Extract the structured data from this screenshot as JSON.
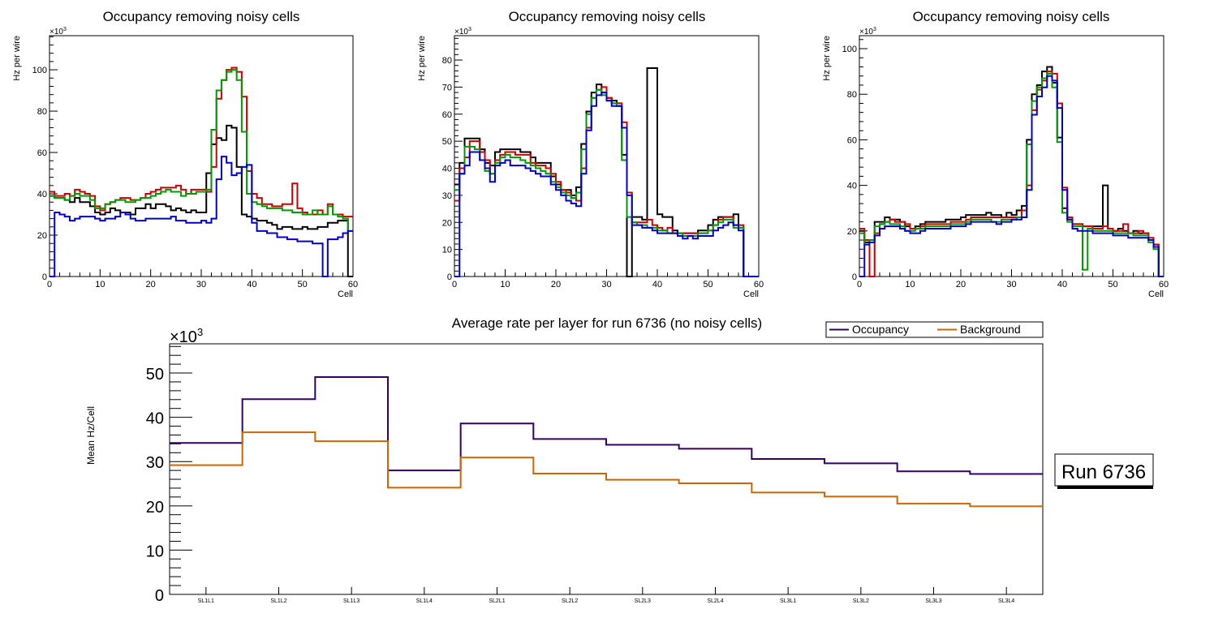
{
  "chart_data": [
    {
      "type": "line",
      "title": "Occupancy removing noisy cells",
      "xlabel": "Cell",
      "ylabel": "Hz per wire",
      "y_multiplier": "×10^3",
      "xlim": [
        0,
        60
      ],
      "ylim": [
        0,
        116.5
      ],
      "xticks": [
        0,
        10,
        20,
        30,
        40,
        50,
        60
      ],
      "yticks": [
        0,
        20,
        40,
        60,
        80,
        100
      ],
      "series": [
        {
          "name": "black",
          "color": "#000000",
          "values": [
            39,
            38,
            38,
            37,
            36,
            38,
            36,
            36,
            34,
            31,
            30,
            31,
            33,
            32,
            31,
            31,
            30,
            33,
            33,
            35,
            33,
            35,
            35,
            34,
            32,
            33,
            32,
            31,
            32,
            31,
            31,
            50,
            64,
            67,
            66,
            73,
            72,
            53,
            30,
            29,
            28,
            27,
            27,
            26,
            25,
            23,
            24,
            24,
            23,
            23,
            24,
            23,
            23,
            24,
            24,
            26,
            26,
            27,
            27,
            0
          ]
        },
        {
          "name": "red",
          "color": "#cc0000",
          "values": [
            41,
            39,
            39,
            40,
            39,
            42,
            41,
            40,
            39,
            34,
            32,
            35,
            36,
            37,
            38,
            38,
            37,
            37,
            38,
            40,
            41,
            42,
            43,
            43,
            43,
            44,
            42,
            40,
            42,
            42,
            42,
            41,
            53,
            86,
            95,
            100,
            101,
            99,
            87,
            51,
            40,
            38,
            35,
            35,
            34,
            34,
            35,
            35,
            45,
            33,
            31,
            30,
            30,
            32,
            30,
            35,
            30,
            30,
            29,
            29
          ]
        },
        {
          "name": "green",
          "color": "#009900",
          "values": [
            39,
            38,
            38,
            37,
            39,
            40,
            39,
            39,
            37,
            33,
            33,
            35,
            36,
            37,
            37,
            36,
            36,
            37,
            38,
            38,
            39,
            40,
            41,
            42,
            41,
            41,
            39,
            40,
            40,
            41,
            41,
            42,
            71,
            90,
            95,
            99,
            100,
            95,
            70,
            40,
            36,
            35,
            34,
            33,
            33,
            33,
            32,
            32,
            31,
            31,
            30,
            30,
            32,
            30,
            30,
            34,
            30,
            29,
            28,
            22
          ]
        },
        {
          "name": "blue",
          "color": "#0000cc",
          "values": [
            0,
            31,
            30,
            29,
            27,
            28,
            29,
            29,
            29,
            28,
            27,
            28,
            28,
            29,
            31,
            30,
            28,
            27,
            27,
            28,
            28,
            28,
            28,
            28,
            29,
            27,
            27,
            26,
            26,
            26,
            27,
            26,
            28,
            47,
            58,
            55,
            49,
            50,
            53,
            54,
            26,
            22,
            22,
            21,
            21,
            19,
            19,
            18,
            18,
            17,
            17,
            17,
            16,
            16,
            0,
            18,
            18,
            19,
            21,
            22
          ]
        }
      ]
    },
    {
      "type": "line",
      "title": "Occupancy removing noisy cells",
      "xlabel": "Cell",
      "ylabel": "Hz per wire",
      "y_multiplier": "×10^3",
      "xlim": [
        0,
        60
      ],
      "ylim": [
        0,
        89
      ],
      "xticks": [
        0,
        10,
        20,
        30,
        40,
        50,
        60
      ],
      "yticks": [
        0,
        10,
        20,
        30,
        40,
        50,
        60,
        70,
        80
      ],
      "series": [
        {
          "name": "black",
          "color": "#000000",
          "values": [
            34,
            42,
            51,
            51,
            51,
            47,
            42,
            41,
            46,
            47,
            47,
            47,
            47,
            46,
            46,
            44,
            42,
            42,
            42,
            37,
            34,
            32,
            32,
            30,
            33,
            49,
            61,
            68,
            71,
            68,
            66,
            65,
            63,
            45,
            0,
            22,
            22,
            21,
            77,
            77,
            23,
            22,
            22,
            17,
            16,
            16,
            16,
            16,
            17,
            17,
            19,
            21,
            22,
            22,
            22,
            23,
            18,
            0,
            0,
            0
          ]
        },
        {
          "name": "red",
          "color": "#cc0000",
          "values": [
            28,
            40,
            44,
            50,
            50,
            46,
            43,
            38,
            43,
            45,
            46,
            46,
            45,
            45,
            45,
            42,
            41,
            41,
            40,
            38,
            35,
            32,
            31,
            29,
            28,
            40,
            55,
            66,
            69,
            70,
            66,
            64,
            64,
            57,
            31,
            20,
            20,
            20,
            21,
            19,
            18,
            17,
            18,
            16,
            16,
            16,
            16,
            16,
            16,
            16,
            17,
            19,
            21,
            22,
            22,
            19,
            19,
            0,
            0,
            0
          ]
        },
        {
          "name": "green",
          "color": "#009900",
          "values": [
            32,
            38,
            48,
            48,
            47,
            43,
            39,
            38,
            42,
            44,
            45,
            44,
            44,
            43,
            42,
            41,
            40,
            39,
            38,
            35,
            33,
            31,
            30,
            29,
            31,
            47,
            60,
            66,
            69,
            67,
            65,
            64,
            63,
            43,
            22,
            20,
            19,
            19,
            18,
            18,
            17,
            17,
            16,
            16,
            16,
            15,
            15,
            15,
            16,
            16,
            17,
            19,
            20,
            21,
            21,
            18,
            18,
            0,
            0,
            0
          ]
        },
        {
          "name": "blue",
          "color": "#0000cc",
          "values": [
            0,
            38,
            41,
            46,
            46,
            43,
            40,
            35,
            41,
            42,
            43,
            41,
            41,
            41,
            40,
            39,
            38,
            37,
            37,
            34,
            32,
            30,
            28,
            27,
            26,
            38,
            54,
            63,
            67,
            68,
            65,
            63,
            63,
            55,
            30,
            19,
            19,
            18,
            18,
            17,
            16,
            16,
            16,
            16,
            15,
            14,
            15,
            14,
            15,
            15,
            15,
            17,
            18,
            19,
            20,
            19,
            17,
            0,
            0,
            0
          ]
        }
      ]
    },
    {
      "type": "line",
      "title": "Occupancy removing noisy cells",
      "xlabel": "Cell",
      "ylabel": "Hz per wire",
      "y_multiplier": "×10^3",
      "xlim": [
        0,
        60
      ],
      "ylim": [
        0,
        105.7
      ],
      "xticks": [
        0,
        10,
        20,
        30,
        40,
        50,
        60
      ],
      "yticks": [
        0,
        20,
        40,
        60,
        80,
        100
      ],
      "series": [
        {
          "name": "black",
          "color": "#000000",
          "values": [
            20,
            15,
            16,
            24,
            24,
            26,
            25,
            25,
            24,
            22,
            21,
            22,
            23,
            24,
            24,
            24,
            24,
            25,
            25,
            25,
            26,
            27,
            27,
            27,
            27,
            28,
            27,
            27,
            26,
            28,
            27,
            29,
            31,
            60,
            80,
            84,
            90,
            92,
            85,
            61,
            30,
            25,
            23,
            23,
            22,
            22,
            22,
            22,
            40,
            21,
            20,
            21,
            20,
            19,
            20,
            19,
            19,
            16,
            14,
            0
          ]
        },
        {
          "name": "red",
          "color": "#cc0000",
          "values": [
            21,
            16,
            0,
            19,
            23,
            24,
            25,
            24,
            24,
            23,
            21,
            21,
            22,
            23,
            23,
            23,
            23,
            23,
            24,
            24,
            24,
            25,
            26,
            26,
            26,
            26,
            26,
            26,
            26,
            26,
            26,
            26,
            29,
            40,
            73,
            82,
            86,
            90,
            89,
            76,
            39,
            26,
            23,
            23,
            22,
            22,
            21,
            21,
            22,
            21,
            20,
            20,
            23,
            19,
            19,
            20,
            19,
            17,
            14,
            0
          ]
        },
        {
          "name": "green",
          "color": "#009900",
          "values": [
            19,
            14,
            16,
            22,
            23,
            24,
            23,
            23,
            22,
            20,
            20,
            21,
            21,
            22,
            22,
            22,
            22,
            22,
            23,
            23,
            23,
            24,
            25,
            25,
            25,
            25,
            24,
            24,
            25,
            25,
            25,
            26,
            26,
            58,
            77,
            83,
            87,
            89,
            83,
            59,
            28,
            24,
            22,
            22,
            3,
            21,
            20,
            20,
            20,
            20,
            19,
            19,
            19,
            19,
            18,
            18,
            18,
            15,
            12,
            0
          ]
        },
        {
          "name": "blue",
          "color": "#0000cc",
          "values": [
            0,
            14,
            15,
            18,
            21,
            22,
            22,
            22,
            21,
            20,
            19,
            19,
            20,
            21,
            21,
            21,
            21,
            21,
            22,
            22,
            22,
            23,
            24,
            24,
            24,
            24,
            24,
            23,
            24,
            24,
            25,
            25,
            26,
            38,
            71,
            79,
            83,
            88,
            86,
            74,
            38,
            25,
            21,
            20,
            20,
            20,
            19,
            19,
            19,
            19,
            18,
            18,
            18,
            17,
            17,
            17,
            17,
            16,
            13,
            0
          ]
        }
      ]
    },
    {
      "type": "line",
      "title": "Average rate per layer for run 6736 (no noisy cells)",
      "xlabel": "",
      "ylabel": "Mean Hz/Cell",
      "y_multiplier": "×10^3",
      "ylim": [
        0,
        56.6
      ],
      "yticks": [
        0,
        10,
        20,
        30,
        40,
        50
      ],
      "categories": [
        "SL1L1",
        "SL1L2",
        "SL1L3",
        "SL1L4",
        "SL2L1",
        "SL2L2",
        "SL2L3",
        "SL2L4",
        "SL3L1",
        "SL3L2",
        "SL3L3",
        "SL3L4"
      ],
      "legend_position": "top-right",
      "series": [
        {
          "name": "Occupancy",
          "color": "#330066",
          "values": [
            34.2,
            44.1,
            49.1,
            28.0,
            38.6,
            35.1,
            33.8,
            32.9,
            30.6,
            29.6,
            27.8,
            27.2
          ]
        },
        {
          "name": "Background",
          "color": "#cc6600",
          "values": [
            29.2,
            36.6,
            34.6,
            24.1,
            30.9,
            27.3,
            25.9,
            25.1,
            23.0,
            22.1,
            20.5,
            19.9
          ]
        }
      ],
      "annotation": "Run 6736"
    }
  ]
}
